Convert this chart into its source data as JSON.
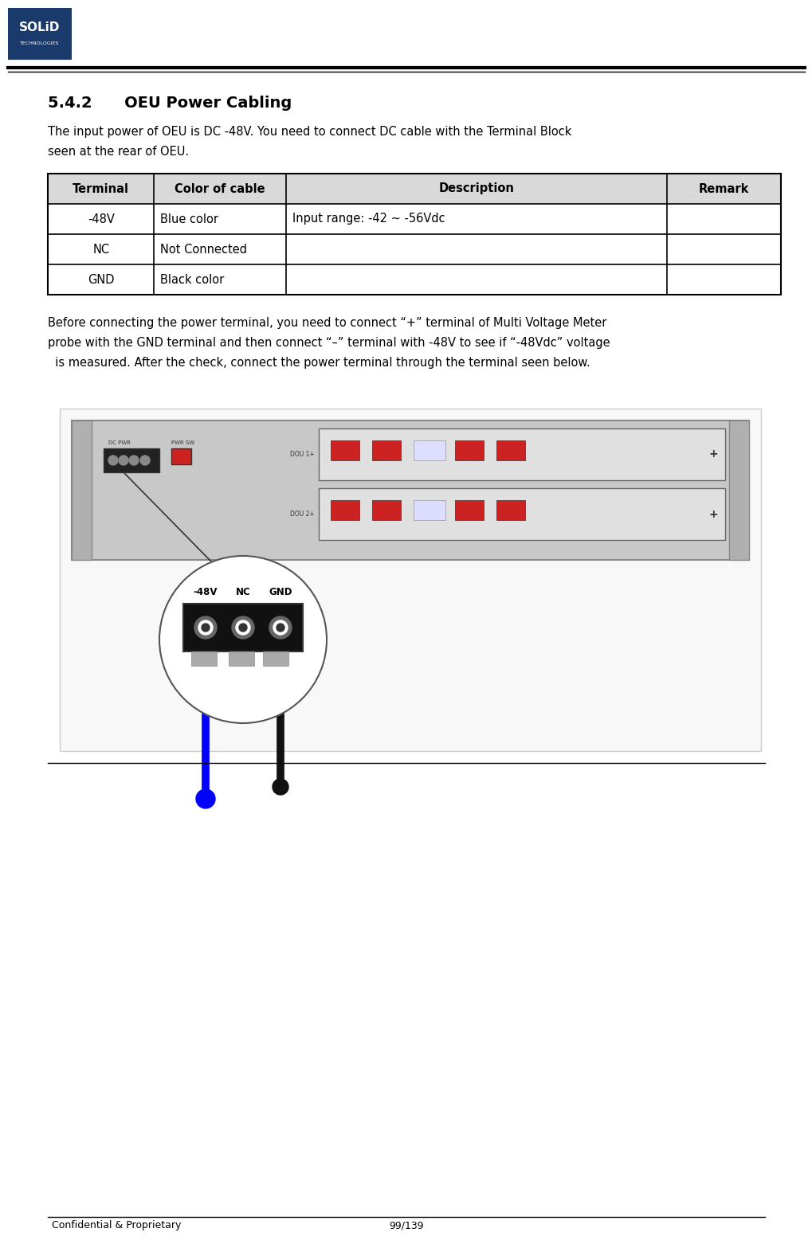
{
  "page_width": 10.2,
  "page_height": 15.62,
  "bg_color": "#ffffff",
  "logo_box_color": "#1a3a6b",
  "header_line_color": "#000000",
  "section_title": "5.4.2      OEU Power Cabling",
  "body_text1": "The input power of OEU is DC -48V. You need to connect DC cable with the Terminal Block\nseen at the rear of OEU.",
  "table_header": [
    "Terminal",
    "Color of cable",
    "Description",
    "Remark"
  ],
  "table_rows": [
    [
      "-48V",
      "Blue color",
      "Input range: -42 ~ -56Vdc",
      ""
    ],
    [
      "NC",
      "Not Connected",
      "",
      ""
    ],
    [
      "GND",
      "Black color",
      "",
      ""
    ]
  ],
  "table_header_bg": "#d9d9d9",
  "table_border_color": "#000000",
  "body_text2": "Before connecting the power terminal, you need to connect “+” terminal of Multi Voltage Meter\nprobe with the GND terminal and then connect “–” terminal with -48V to see if “-48Vdc” voltage\n  is measured. After the check, connect the power terminal through the terminal seen below.",
  "footer_text_left": "Confidential & Proprietary",
  "footer_text_right": "99/139",
  "footer_line_color": "#000000"
}
